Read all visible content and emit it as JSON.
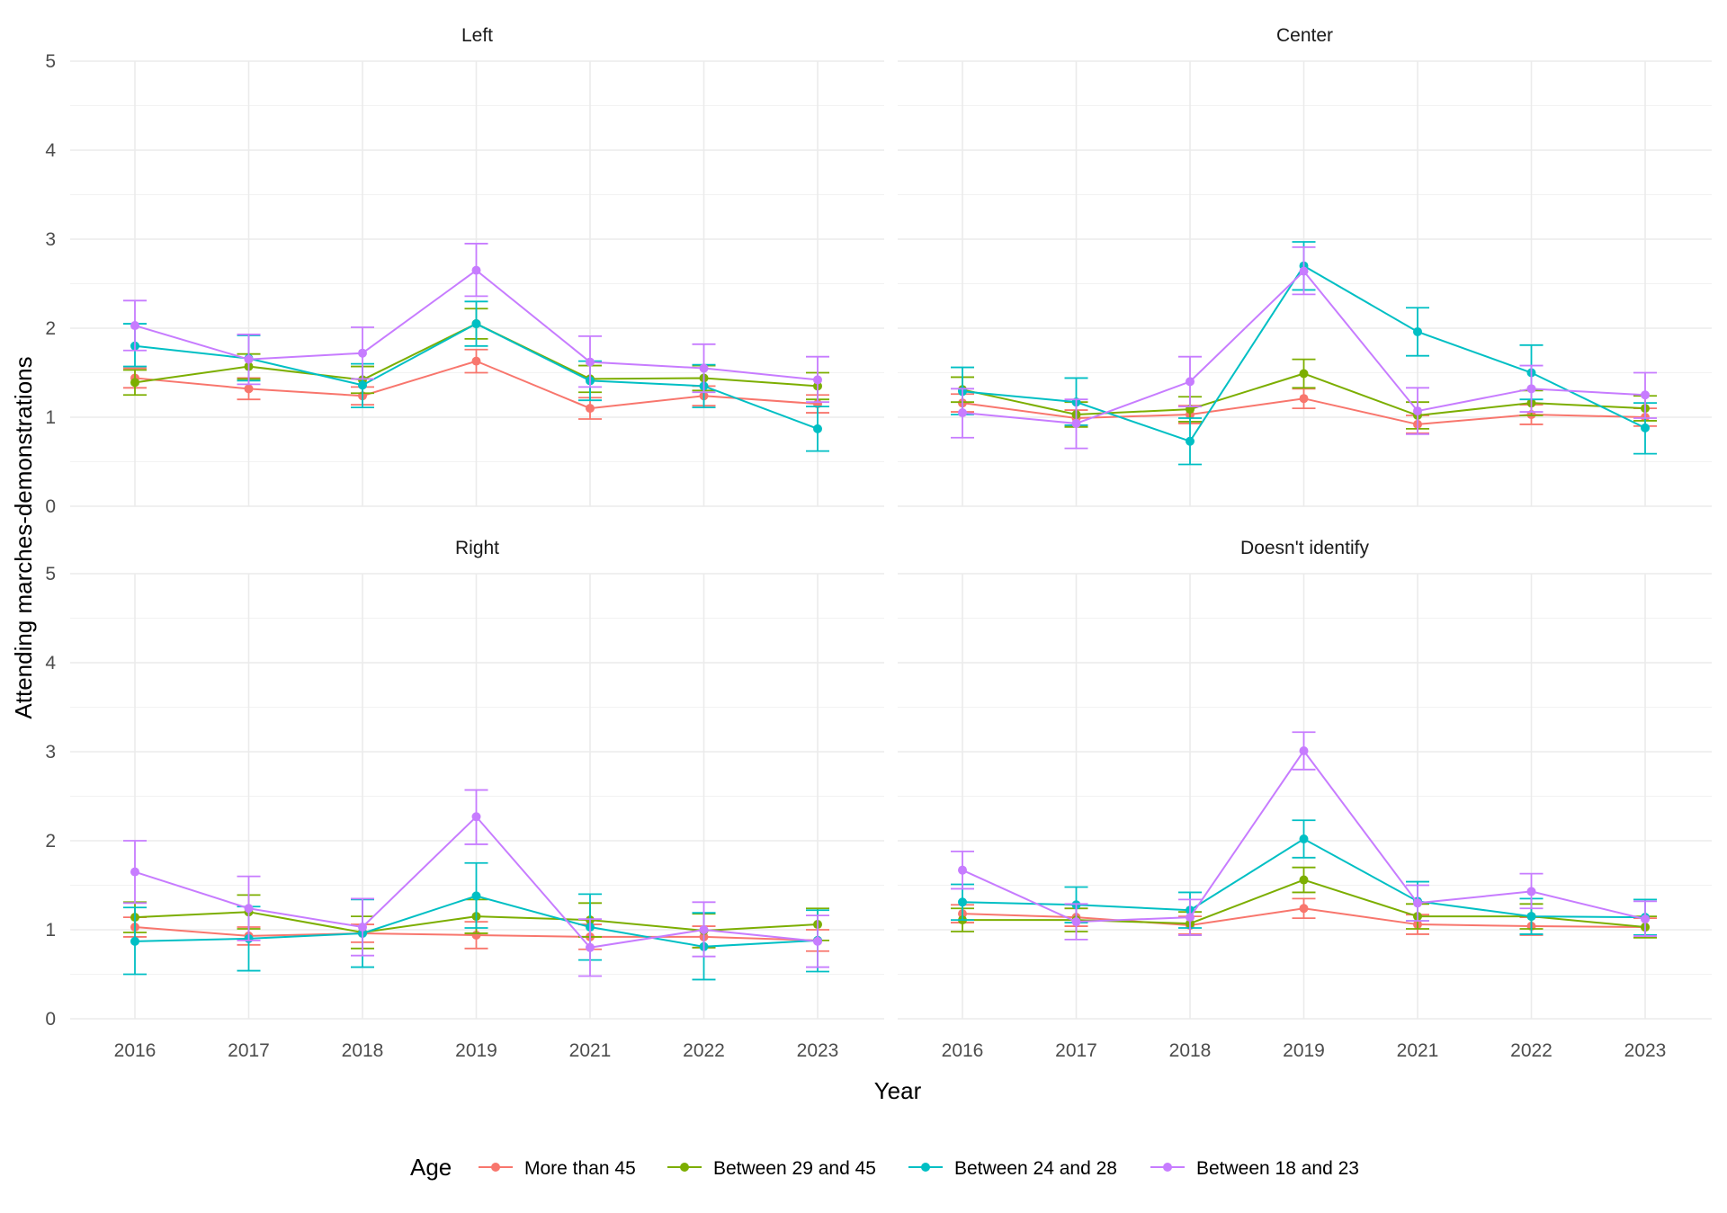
{
  "chart_data": {
    "type": "line",
    "facet_by": "Ideology",
    "xlabel": "Year",
    "ylabel": "Attending marches-demonstrations",
    "x": [
      "2016",
      "2017",
      "2018",
      "2019",
      "2021",
      "2022",
      "2023"
    ],
    "ylim": [
      0,
      5
    ],
    "yticks": [
      0,
      1,
      2,
      3,
      4,
      5
    ],
    "grid": true,
    "error_bars": true,
    "legend": {
      "title": "Age",
      "position": "bottom",
      "entries": [
        "More than 45",
        "Between 29 and 45",
        "Between 24 and 28",
        "Between 18 and 23"
      ]
    },
    "colors": {
      "More than 45": "#F8766D",
      "Between 29 and 45": "#7CAE00",
      "Between 24 and 28": "#00BFC4",
      "Between 18 and 23": "#C77CFF"
    },
    "panels": [
      {
        "title": "Left",
        "series": [
          {
            "name": "More than 45",
            "values": [
              1.44,
              1.32,
              1.24,
              1.63,
              1.1,
              1.24,
              1.15
            ],
            "lower": [
              1.33,
              1.2,
              1.14,
              1.5,
              0.98,
              1.13,
              1.05
            ],
            "upper": [
              1.55,
              1.44,
              1.34,
              1.76,
              1.22,
              1.35,
              1.25
            ]
          },
          {
            "name": "Between 29 and 45",
            "values": [
              1.39,
              1.57,
              1.42,
              2.05,
              1.43,
              1.44,
              1.35
            ],
            "lower": [
              1.25,
              1.43,
              1.27,
              1.88,
              1.28,
              1.3,
              1.2
            ],
            "upper": [
              1.53,
              1.71,
              1.57,
              2.22,
              1.58,
              1.58,
              1.5
            ]
          },
          {
            "name": "Between 24 and 28",
            "values": [
              1.8,
              1.66,
              1.36,
              2.05,
              1.41,
              1.35,
              0.87
            ],
            "lower": [
              1.57,
              1.41,
              1.11,
              1.8,
              1.19,
              1.11,
              0.62
            ],
            "upper": [
              2.05,
              1.92,
              1.6,
              2.3,
              1.63,
              1.59,
              1.12
            ]
          },
          {
            "name": "Between 18 and 23",
            "values": [
              2.03,
              1.65,
              1.72,
              2.65,
              1.62,
              1.55,
              1.42
            ],
            "lower": [
              1.75,
              1.37,
              1.43,
              2.36,
              1.34,
              1.28,
              1.17
            ],
            "upper": [
              2.31,
              1.93,
              2.01,
              2.95,
              1.91,
              1.82,
              1.68
            ]
          }
        ]
      },
      {
        "title": "Center",
        "series": [
          {
            "name": "More than 45",
            "values": [
              1.16,
              0.99,
              1.03,
              1.21,
              0.92,
              1.03,
              1.0
            ],
            "lower": [
              1.06,
              0.9,
              0.93,
              1.1,
              0.82,
              0.92,
              0.9
            ],
            "upper": [
              1.26,
              1.08,
              1.13,
              1.32,
              1.02,
              1.14,
              1.1
            ]
          },
          {
            "name": "Between 29 and 45",
            "values": [
              1.31,
              1.03,
              1.09,
              1.49,
              1.02,
              1.16,
              1.1
            ],
            "lower": [
              1.17,
              0.89,
              0.95,
              1.33,
              0.87,
              1.02,
              0.96
            ],
            "upper": [
              1.45,
              1.17,
              1.23,
              1.65,
              1.17,
              1.3,
              1.24
            ]
          },
          {
            "name": "Between 24 and 28",
            "values": [
              1.29,
              1.17,
              0.73,
              2.7,
              1.96,
              1.5,
              0.88
            ],
            "lower": [
              1.03,
              0.91,
              0.47,
              2.43,
              1.69,
              1.2,
              0.59
            ],
            "upper": [
              1.56,
              1.44,
              0.99,
              2.97,
              2.23,
              1.81,
              1.16
            ]
          },
          {
            "name": "Between 18 and 23",
            "values": [
              1.05,
              0.93,
              1.4,
              2.64,
              1.07,
              1.32,
              1.25
            ],
            "lower": [
              0.77,
              0.65,
              1.12,
              2.38,
              0.81,
              1.06,
              0.99
            ],
            "upper": [
              1.32,
              1.2,
              1.68,
              2.91,
              1.33,
              1.58,
              1.5
            ]
          }
        ]
      },
      {
        "title": "Right",
        "series": [
          {
            "name": "More than 45",
            "values": [
              1.03,
              0.93,
              0.96,
              0.94,
              0.92,
              0.92,
              0.88
            ],
            "lower": [
              0.92,
              0.83,
              0.86,
              0.79,
              0.78,
              0.8,
              0.76
            ],
            "upper": [
              1.14,
              1.03,
              1.06,
              1.09,
              1.06,
              1.04,
              1.0
            ]
          },
          {
            "name": "Between 29 and 45",
            "values": [
              1.14,
              1.2,
              0.97,
              1.15,
              1.11,
              0.99,
              1.06
            ],
            "lower": [
              0.97,
              1.01,
              0.79,
              0.96,
              0.92,
              0.8,
              0.88
            ],
            "upper": [
              1.31,
              1.39,
              1.15,
              1.34,
              1.3,
              1.18,
              1.24
            ]
          },
          {
            "name": "Between 24 and 28",
            "values": [
              0.87,
              0.9,
              0.96,
              1.38,
              1.03,
              0.81,
              0.88
            ],
            "lower": [
              0.5,
              0.54,
              0.58,
              1.02,
              0.66,
              0.44,
              0.53
            ],
            "upper": [
              1.25,
              1.26,
              1.34,
              1.75,
              1.4,
              1.19,
              1.22
            ]
          },
          {
            "name": "Between 18 and 23",
            "values": [
              1.65,
              1.24,
              1.03,
              2.27,
              0.8,
              1.0,
              0.87
            ],
            "lower": [
              1.3,
              0.88,
              0.71,
              1.96,
              0.48,
              0.7,
              0.58
            ],
            "upper": [
              2.0,
              1.6,
              1.35,
              2.57,
              1.12,
              1.31,
              1.16
            ]
          }
        ]
      },
      {
        "title": "Doesn't identify",
        "series": [
          {
            "name": "More than 45",
            "values": [
              1.18,
              1.14,
              1.05,
              1.24,
              1.06,
              1.04,
              1.03
            ],
            "lower": [
              1.08,
              1.04,
              0.95,
              1.13,
              0.95,
              0.94,
              0.93
            ],
            "upper": [
              1.28,
              1.24,
              1.15,
              1.35,
              1.17,
              1.14,
              1.13
            ]
          },
          {
            "name": "Between 29 and 45",
            "values": [
              1.11,
              1.11,
              1.07,
              1.56,
              1.15,
              1.15,
              1.03
            ],
            "lower": [
              0.98,
              0.98,
              0.94,
              1.42,
              1.01,
              1.01,
              0.91
            ],
            "upper": [
              1.24,
              1.24,
              1.2,
              1.7,
              1.29,
              1.29,
              1.15
            ]
          },
          {
            "name": "Between 24 and 28",
            "values": [
              1.31,
              1.28,
              1.22,
              2.02,
              1.32,
              1.15,
              1.14
            ],
            "lower": [
              1.11,
              1.08,
              1.02,
              1.81,
              1.1,
              0.95,
              0.94
            ],
            "upper": [
              1.51,
              1.48,
              1.42,
              2.23,
              1.54,
              1.35,
              1.34
            ]
          },
          {
            "name": "Between 18 and 23",
            "values": [
              1.67,
              1.09,
              1.14,
              3.01,
              1.3,
              1.43,
              1.12
            ],
            "lower": [
              1.46,
              0.89,
              0.94,
              2.8,
              1.1,
              1.24,
              0.93
            ],
            "upper": [
              1.88,
              1.29,
              1.34,
              3.22,
              1.5,
              1.63,
              1.32
            ]
          }
        ]
      }
    ]
  }
}
